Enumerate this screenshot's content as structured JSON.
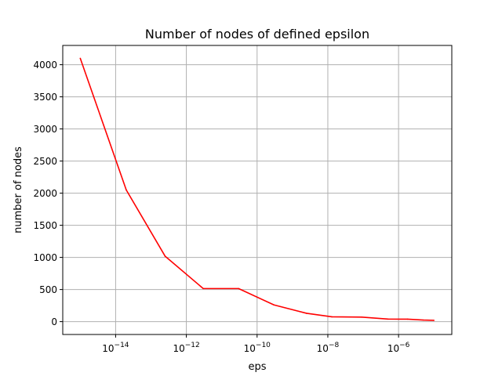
{
  "chart_data": {
    "type": "line",
    "title": "Number of nodes of defined epsilon",
    "xlabel": "eps",
    "ylabel": "number of nodes",
    "x_scale": "log",
    "xlim": [
      3.2e-16,
      3.2e-05
    ],
    "ylim": [
      -200,
      4300
    ],
    "x_ticks": [
      {
        "value": 1e-14,
        "base": "10",
        "exponent": "−14"
      },
      {
        "value": 1e-12,
        "base": "10",
        "exponent": "−12"
      },
      {
        "value": 1e-10,
        "base": "10",
        "exponent": "−10"
      },
      {
        "value": 1e-08,
        "base": "10",
        "exponent": "−8"
      },
      {
        "value": 1e-06,
        "base": "10",
        "exponent": "−6"
      }
    ],
    "y_ticks": [
      {
        "value": 0,
        "label": "0"
      },
      {
        "value": 500,
        "label": "500"
      },
      {
        "value": 1000,
        "label": "1000"
      },
      {
        "value": 1500,
        "label": "1500"
      },
      {
        "value": 2000,
        "label": "2000"
      },
      {
        "value": 2500,
        "label": "2500"
      },
      {
        "value": 3000,
        "label": "3000"
      },
      {
        "value": 3500,
        "label": "3500"
      },
      {
        "value": 4000,
        "label": "4000"
      }
    ],
    "grid": true,
    "series": [
      {
        "color": "#ff0000",
        "x": [
          1e-15,
          2e-14,
          2.5e-13,
          3e-12,
          3e-11,
          3e-10,
          2.5e-09,
          1.3e-08,
          9e-08,
          5e-07,
          1.8e-06,
          5e-06,
          1e-05
        ],
        "y": [
          4100,
          2050,
          1020,
          515,
          515,
          260,
          130,
          75,
          70,
          40,
          38,
          25,
          20
        ]
      }
    ]
  }
}
